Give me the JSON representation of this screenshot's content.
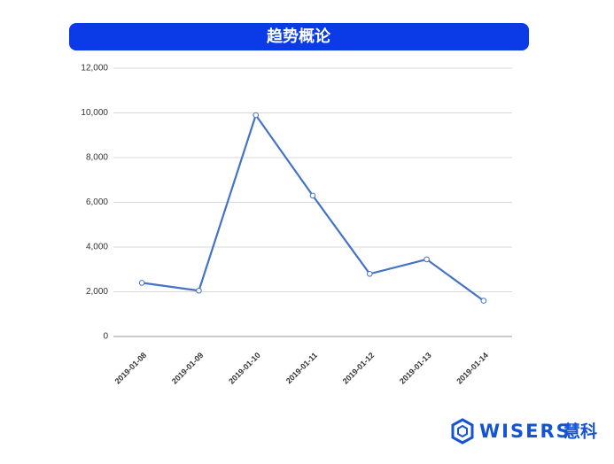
{
  "chart_data": {
    "type": "line",
    "title": "趋势概论",
    "categories": [
      "2019-01-08",
      "2019-01-09",
      "2019-01-10",
      "2019-01-11",
      "2019-01-12",
      "2019-01-13",
      "2019-01-14"
    ],
    "series": [
      {
        "color": "#4472c4",
        "values": [
          2400,
          2050,
          9900,
          6300,
          2800,
          3450,
          1600
        ]
      }
    ],
    "ylim": [
      0,
      12000
    ],
    "yticks": [
      0,
      {
        "value": 2000,
        "label": "2,000"
      },
      {
        "value": 4000,
        "label": "4,000"
      },
      {
        "value": 6000,
        "label": "6,000"
      },
      {
        "value": 8000,
        "label": "8,000"
      },
      {
        "value": 10000,
        "label": "10,000"
      },
      {
        "value": 12000,
        "label": "12,000"
      }
    ],
    "grid": true
  },
  "logo": {
    "brand": "WISERS",
    "name": "慧科"
  }
}
